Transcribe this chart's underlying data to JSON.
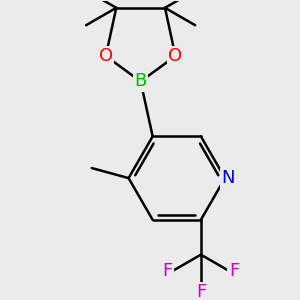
{
  "bg_color": "#ebebeb",
  "bond_color": "#000000",
  "bond_width": 1.8,
  "atom_colors": {
    "O": "#ff0000",
    "B": "#00bb00",
    "N": "#0000cc",
    "F": "#cc00cc",
    "C": "#000000"
  },
  "font_size_atoms": 13,
  "font_size_small": 10,
  "dpi": 100,
  "figsize": [
    3.0,
    3.0
  ]
}
